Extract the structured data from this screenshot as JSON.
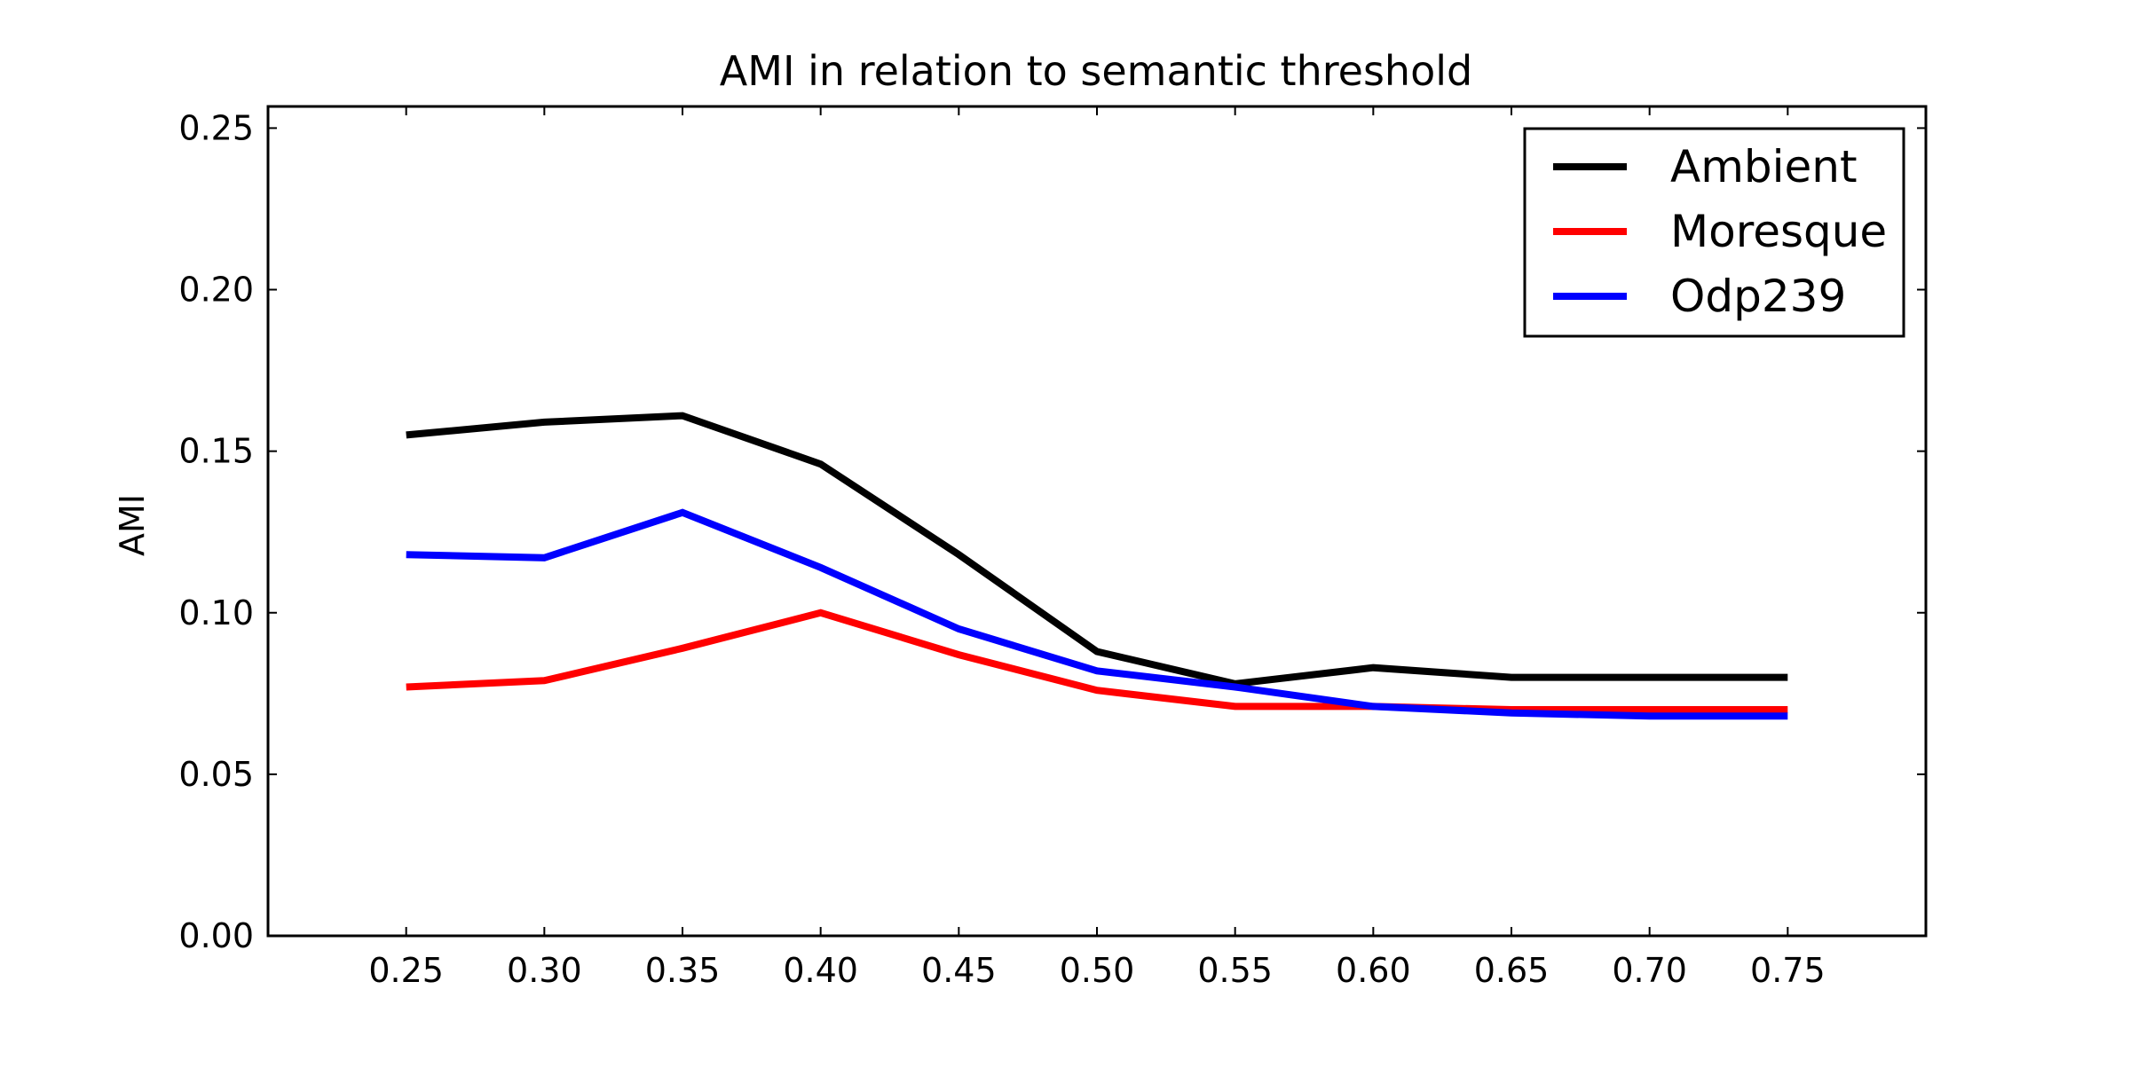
{
  "chart_data": {
    "type": "line",
    "title": "AMI in relation to semantic threshold",
    "xlabel": "",
    "ylabel": "AMI",
    "x": [
      0.25,
      0.3,
      0.35,
      0.4,
      0.45,
      0.5,
      0.55,
      0.6,
      0.65,
      0.7,
      0.75
    ],
    "x_tick_labels": [
      "0.25",
      "0.30",
      "0.35",
      "0.40",
      "0.45",
      "0.50",
      "0.55",
      "0.60",
      "0.65",
      "0.70",
      "0.75"
    ],
    "xlim": [
      0.2,
      0.8
    ],
    "ylim": [
      0.0,
      0.2567
    ],
    "y_ticks": [
      0.0,
      0.05,
      0.1,
      0.15,
      0.2,
      0.25
    ],
    "y_tick_labels": [
      "0.00",
      "0.05",
      "0.10",
      "0.15",
      "0.20",
      "0.25"
    ],
    "grid": false,
    "legend_position": "top-right",
    "series": [
      {
        "name": "Ambient",
        "color": "#000000",
        "values": [
          0.155,
          0.159,
          0.161,
          0.146,
          0.118,
          0.088,
          0.078,
          0.083,
          0.08,
          0.08,
          0.08
        ]
      },
      {
        "name": "Moresque",
        "color": "#ff0000",
        "values": [
          0.077,
          0.079,
          0.089,
          0.1,
          0.087,
          0.076,
          0.071,
          0.071,
          0.07,
          0.07,
          0.07
        ]
      },
      {
        "name": "Odp239",
        "color": "#0000ff",
        "values": [
          0.118,
          0.117,
          0.131,
          0.114,
          0.095,
          0.082,
          0.077,
          0.071,
          0.069,
          0.068,
          0.068
        ]
      }
    ]
  }
}
